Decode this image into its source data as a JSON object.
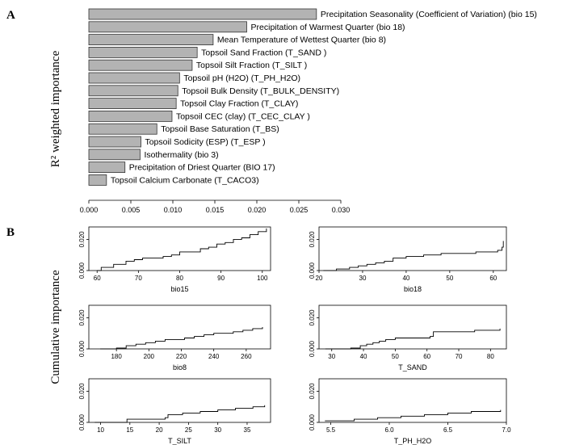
{
  "panels": {
    "a_letter": "A",
    "b_letter": "B",
    "a_ylabel": "R² weighted importance",
    "b_ylabel": "Cumulative importance"
  },
  "chart_data": [
    {
      "type": "bar",
      "orientation": "horizontal",
      "categories": [
        "Precipitation Seasonality  (Coefficient of Variation) (bio 15)",
        "Precipitation of Warmest Quarter (bio 18)",
        "Mean Temperature of Wettest Quarter (bio 8)",
        "Topsoil Sand Fraction (T_SAND )",
        "Topsoil Silt Fraction (T_SILT )",
        "Topsoil pH (H2O)  (T_PH_H2O)",
        "Topsoil  Bulk  Density (T_BULK_DENSITY)",
        "Topsoil Clay Fraction (T_CLAY)",
        "Topsoil CEC (clay)  (T_CEC_CLAY )",
        "Topsoil Base Saturation (T_BS)",
        "Topsoil Sodicity (ESP)  (T_ESP )",
        "Isothermality (bio 3)",
        "Precipitation of Driest Quarter (BIO 17)",
        "Topsoil Calcium Carbonate (T_CACO3)"
      ],
      "values": [
        0.0271,
        0.0188,
        0.0148,
        0.0129,
        0.0123,
        0.0108,
        0.0106,
        0.0104,
        0.0099,
        0.0081,
        0.0062,
        0.0061,
        0.0043,
        0.0021
      ],
      "xlim": [
        0,
        0.03
      ],
      "xticks": [
        "0.000",
        "0.005",
        "0.010",
        "0.015",
        "0.020",
        "0.025",
        "0.030"
      ],
      "xtick_values": [
        0,
        0.005,
        0.01,
        0.015,
        0.02,
        0.025,
        0.03
      ],
      "bar_color": "#b3b3b3"
    },
    {
      "type": "line",
      "xlabel": "bio15",
      "xlim": [
        58,
        102
      ],
      "ylim": [
        0,
        0.028
      ],
      "xticks": [
        "60",
        "70",
        "80",
        "90",
        "100"
      ],
      "xtick_values": [
        60,
        70,
        80,
        90,
        100
      ],
      "yticks": [
        "0.000",
        "0.020"
      ],
      "ytick_values": [
        0,
        0.02
      ],
      "x": [
        60,
        61,
        63,
        64,
        66,
        67,
        69,
        71,
        73,
        76,
        78,
        80,
        82,
        85,
        87,
        89,
        91,
        93,
        95,
        97,
        99,
        101
      ],
      "y": [
        0,
        0.002,
        0.002,
        0.004,
        0.004,
        0.006,
        0.007,
        0.008,
        0.008,
        0.009,
        0.01,
        0.012,
        0.012,
        0.014,
        0.015,
        0.017,
        0.018,
        0.02,
        0.021,
        0.023,
        0.025,
        0.027
      ]
    },
    {
      "type": "line",
      "xlabel": "bio18",
      "xlim": [
        20,
        63
      ],
      "ylim": [
        0,
        0.028
      ],
      "xticks": [
        "20",
        "30",
        "40",
        "50",
        "60"
      ],
      "xtick_values": [
        20,
        30,
        40,
        50,
        60
      ],
      "yticks": [
        "0.000",
        "0.020"
      ],
      "ytick_values": [
        0,
        0.02
      ],
      "x": [
        21,
        24,
        27,
        29,
        31,
        33,
        35,
        37,
        40,
        44,
        48,
        52,
        56,
        59,
        61,
        62,
        62.3
      ],
      "y": [
        0,
        0.001,
        0.002,
        0.003,
        0.004,
        0.005,
        0.006,
        0.008,
        0.009,
        0.01,
        0.011,
        0.011,
        0.012,
        0.012,
        0.013,
        0.015,
        0.019
      ]
    },
    {
      "type": "line",
      "xlabel": "bio8",
      "xlim": [
        163,
        275
      ],
      "ylim": [
        0,
        0.028
      ],
      "xticks": [
        "180",
        "200",
        "220",
        "240",
        "260"
      ],
      "xtick_values": [
        180,
        200,
        220,
        240,
        260
      ],
      "yticks": [
        "0.000",
        "0.020"
      ],
      "ytick_values": [
        0,
        0.02
      ],
      "x": [
        170,
        180,
        186,
        192,
        198,
        204,
        210,
        216,
        222,
        228,
        234,
        240,
        246,
        252,
        258,
        264,
        270
      ],
      "y": [
        0,
        0.0005,
        0.002,
        0.003,
        0.004,
        0.005,
        0.006,
        0.006,
        0.007,
        0.008,
        0.009,
        0.01,
        0.01,
        0.011,
        0.012,
        0.013,
        0.014
      ]
    },
    {
      "type": "line",
      "xlabel": "T_SAND",
      "xlim": [
        26,
        85
      ],
      "ylim": [
        0,
        0.028
      ],
      "xticks": [
        "30",
        "40",
        "50",
        "60",
        "70",
        "80"
      ],
      "xtick_values": [
        30,
        40,
        50,
        60,
        70,
        80
      ],
      "yticks": [
        "0.000",
        "0.020"
      ],
      "ytick_values": [
        0,
        0.02
      ],
      "x": [
        28,
        36,
        39,
        41,
        43,
        45,
        47,
        50,
        55,
        58,
        61,
        62,
        70,
        75,
        80,
        83
      ],
      "y": [
        0,
        0.0005,
        0.002,
        0.003,
        0.004,
        0.005,
        0.006,
        0.007,
        0.007,
        0.007,
        0.008,
        0.011,
        0.011,
        0.012,
        0.012,
        0.013
      ]
    },
    {
      "type": "line",
      "xlabel": "T_SILT",
      "xlim": [
        8,
        39
      ],
      "ylim": [
        0,
        0.028
      ],
      "xticks": [
        "10",
        "15",
        "20",
        "25",
        "30",
        "35"
      ],
      "xtick_values": [
        10,
        15,
        20,
        25,
        30,
        35
      ],
      "yticks": [
        "0.000",
        "0.020"
      ],
      "ytick_values": [
        0,
        0.02
      ],
      "x": [
        9,
        14.5,
        21,
        21.5,
        24,
        27,
        30,
        33,
        36,
        38
      ],
      "y": [
        0,
        0.002,
        0.003,
        0.005,
        0.006,
        0.007,
        0.008,
        0.009,
        0.01,
        0.011
      ]
    },
    {
      "type": "line",
      "xlabel": "T_PH_H2O",
      "xlim": [
        5.4,
        7.0
      ],
      "ylim": [
        0,
        0.028
      ],
      "xticks": [
        "5.5",
        "6.0",
        "6.5",
        "7.0"
      ],
      "xtick_values": [
        5.5,
        6.0,
        6.5,
        7.0
      ],
      "yticks": [
        "0.000",
        "0.020"
      ],
      "ytick_values": [
        0,
        0.02
      ],
      "x": [
        5.45,
        5.7,
        5.9,
        6.1,
        6.3,
        6.5,
        6.7,
        6.95
      ],
      "y": [
        0.001,
        0.002,
        0.003,
        0.004,
        0.005,
        0.006,
        0.007,
        0.008
      ]
    }
  ]
}
